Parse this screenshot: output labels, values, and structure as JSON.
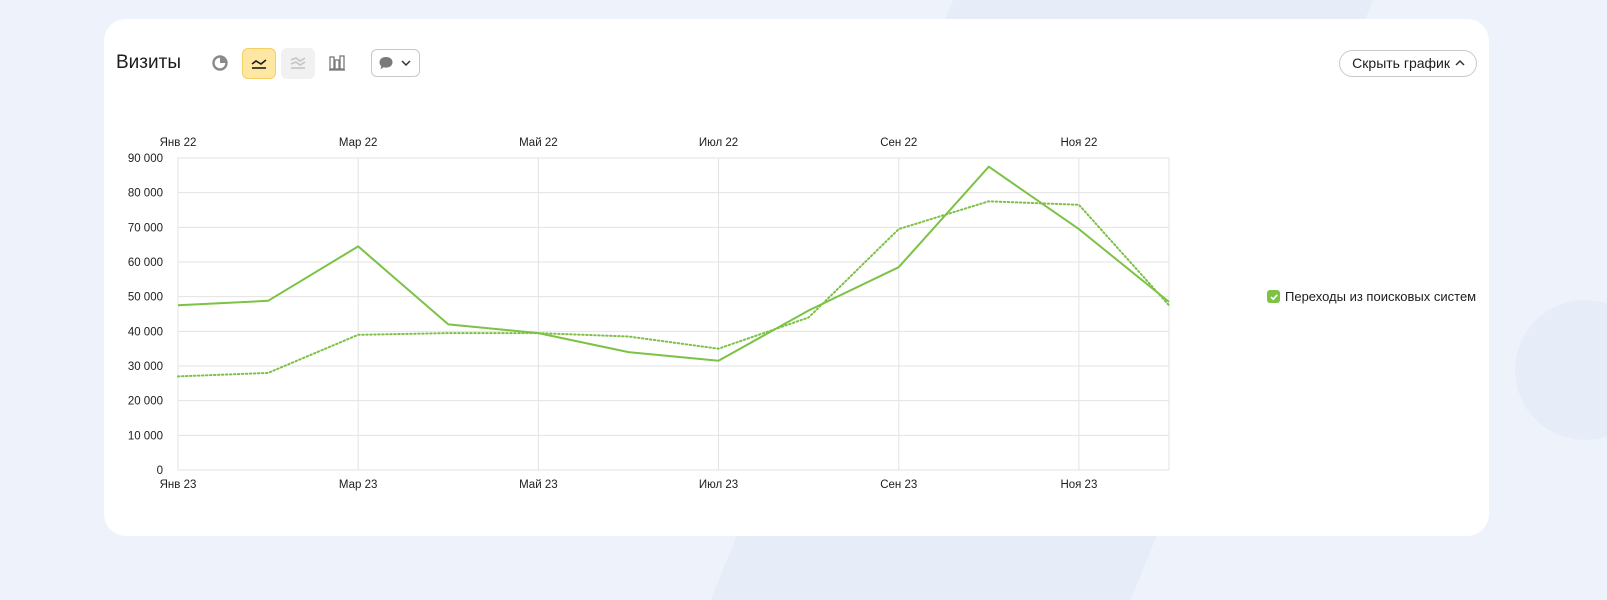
{
  "header": {
    "title": "Визиты",
    "hide_chart_label": "Скрыть график"
  },
  "toolbar": {
    "icons": [
      "pie-chart-icon",
      "line-chart-icon",
      "area-chart-icon",
      "bar-chart-icon",
      "comment-icon",
      "chevron-down-icon"
    ],
    "active": "line-chart-icon"
  },
  "legend": {
    "label": "Переходы из поисковых систем",
    "checked": true
  },
  "colors": {
    "series": "#7cc245",
    "grid": "#e3e3e3",
    "active_bg": "#fde7a3"
  },
  "chart_data": {
    "type": "line",
    "ylim": [
      0,
      90000
    ],
    "y_ticks": [
      "0",
      "10 000",
      "20 000",
      "30 000",
      "40 000",
      "50 000",
      "60 000",
      "70 000",
      "80 000",
      "90 000"
    ],
    "x_top_ticks": [
      "Янв 22",
      "Мар 22",
      "Май 22",
      "Июл 22",
      "Сен 22",
      "Ноя 22"
    ],
    "x_bottom_ticks": [
      "Янв 23",
      "Мар 23",
      "Май 23",
      "Июл 23",
      "Сен 23",
      "Ноя 23"
    ],
    "series": [
      {
        "name": "Переходы из поисковых систем",
        "period": "2023",
        "style": "solid",
        "values": [
          47500,
          48800,
          64500,
          42000,
          39500,
          34000,
          31500,
          46000,
          58500,
          87500,
          69500,
          48500
        ]
      },
      {
        "name": "Переходы из поисковых систем",
        "period": "2022",
        "style": "dotted",
        "values": [
          27000,
          28000,
          39000,
          39500,
          39500,
          38500,
          35000,
          44000,
          69500,
          77500,
          76500,
          47500
        ]
      }
    ]
  }
}
